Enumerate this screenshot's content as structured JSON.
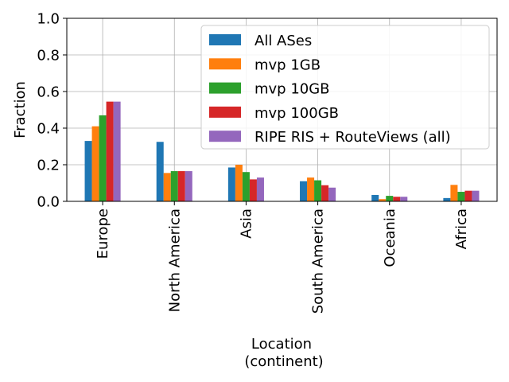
{
  "chart_data": {
    "type": "bar",
    "xlabel_lines": [
      "Location",
      "(continent)"
    ],
    "ylabel": "Fraction",
    "ylim": [
      0,
      1.0
    ],
    "yticks": [
      "0.0",
      "0.2",
      "0.4",
      "0.6",
      "0.8",
      "1.0"
    ],
    "grid": true,
    "legend_position": "top-right",
    "categories": [
      "Europe",
      "North America",
      "Asia",
      "South America",
      "Oceania",
      "Africa"
    ],
    "series": [
      {
        "name": "All ASes",
        "color": "#1f77b4",
        "values": [
          0.33,
          0.325,
          0.185,
          0.11,
          0.035,
          0.018
        ]
      },
      {
        "name": "mvp 1GB",
        "color": "#ff7f0e",
        "values": [
          0.41,
          0.155,
          0.2,
          0.13,
          0.012,
          0.09
        ]
      },
      {
        "name": "mvp 10GB",
        "color": "#2ca02c",
        "values": [
          0.47,
          0.165,
          0.16,
          0.115,
          0.03,
          0.052
        ]
      },
      {
        "name": "mvp 100GB",
        "color": "#d62728",
        "values": [
          0.545,
          0.165,
          0.12,
          0.088,
          0.025,
          0.058
        ]
      },
      {
        "name": "RIPE RIS + RouteViews (all)",
        "color": "#9467bd",
        "values": [
          0.545,
          0.165,
          0.13,
          0.075,
          0.025,
          0.058
        ]
      }
    ]
  }
}
